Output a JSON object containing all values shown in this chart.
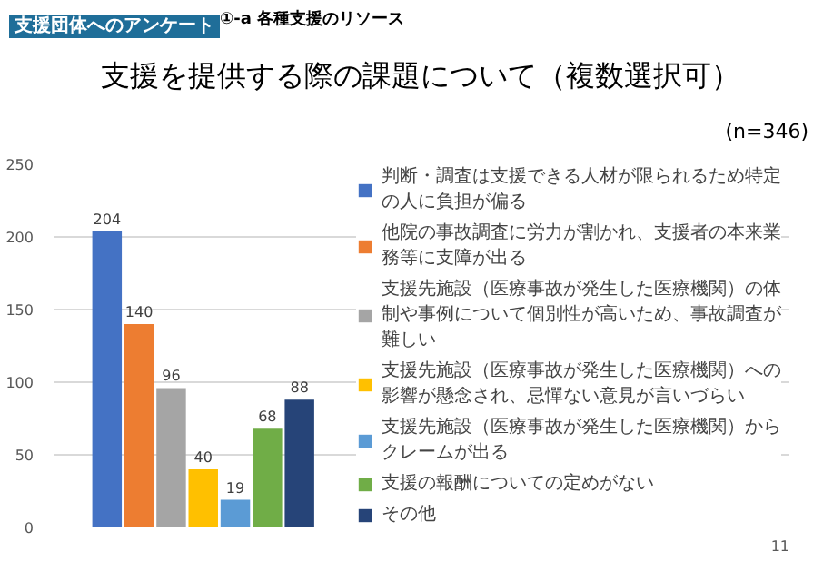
{
  "chart_data": {
    "type": "bar",
    "title": "支援を提供する際の課題について（複数選択可）",
    "subtitle": "(n=346)",
    "annotations": [
      "支援団体へのアンケート",
      "①-a 各種支援のリソース",
      "11"
    ],
    "categories": [
      null
    ],
    "series": [
      {
        "name": "判断・調査は支援できる人材が限られるため特定の人に負担が偏る",
        "color": "#4472c4",
        "values": [
          204
        ]
      },
      {
        "name": "他院の事故調査に労力が割かれ、支援者の本来業務等に支障が出る",
        "color": "#ed7d31",
        "values": [
          140
        ]
      },
      {
        "name": "支援先施設（医療事故が発生した医療機関）の体制や事例について個別性が高いため、事故調査が難しい",
        "color": "#a5a5a5",
        "values": [
          96
        ]
      },
      {
        "name": "支援先施設（医療事故が発生した医療機関）への影響が懸念され、忌憚ない意見が言いづらい",
        "color": "#ffc000",
        "values": [
          40
        ]
      },
      {
        "name": "支援先施設（医療事故が発生した医療機関）からクレームが出る",
        "color": "#5b9bd5",
        "values": [
          19
        ]
      },
      {
        "name": "支援の報酬についての定めがない",
        "color": "#70ad47",
        "values": [
          68
        ]
      },
      {
        "name": "その他",
        "color": "#264478",
        "values": [
          88
        ]
      }
    ],
    "ylim": [
      0,
      250
    ],
    "yticks": [
      0,
      50,
      100,
      150,
      200,
      250
    ],
    "grid": "y",
    "legend": "right",
    "data_labels": true
  }
}
